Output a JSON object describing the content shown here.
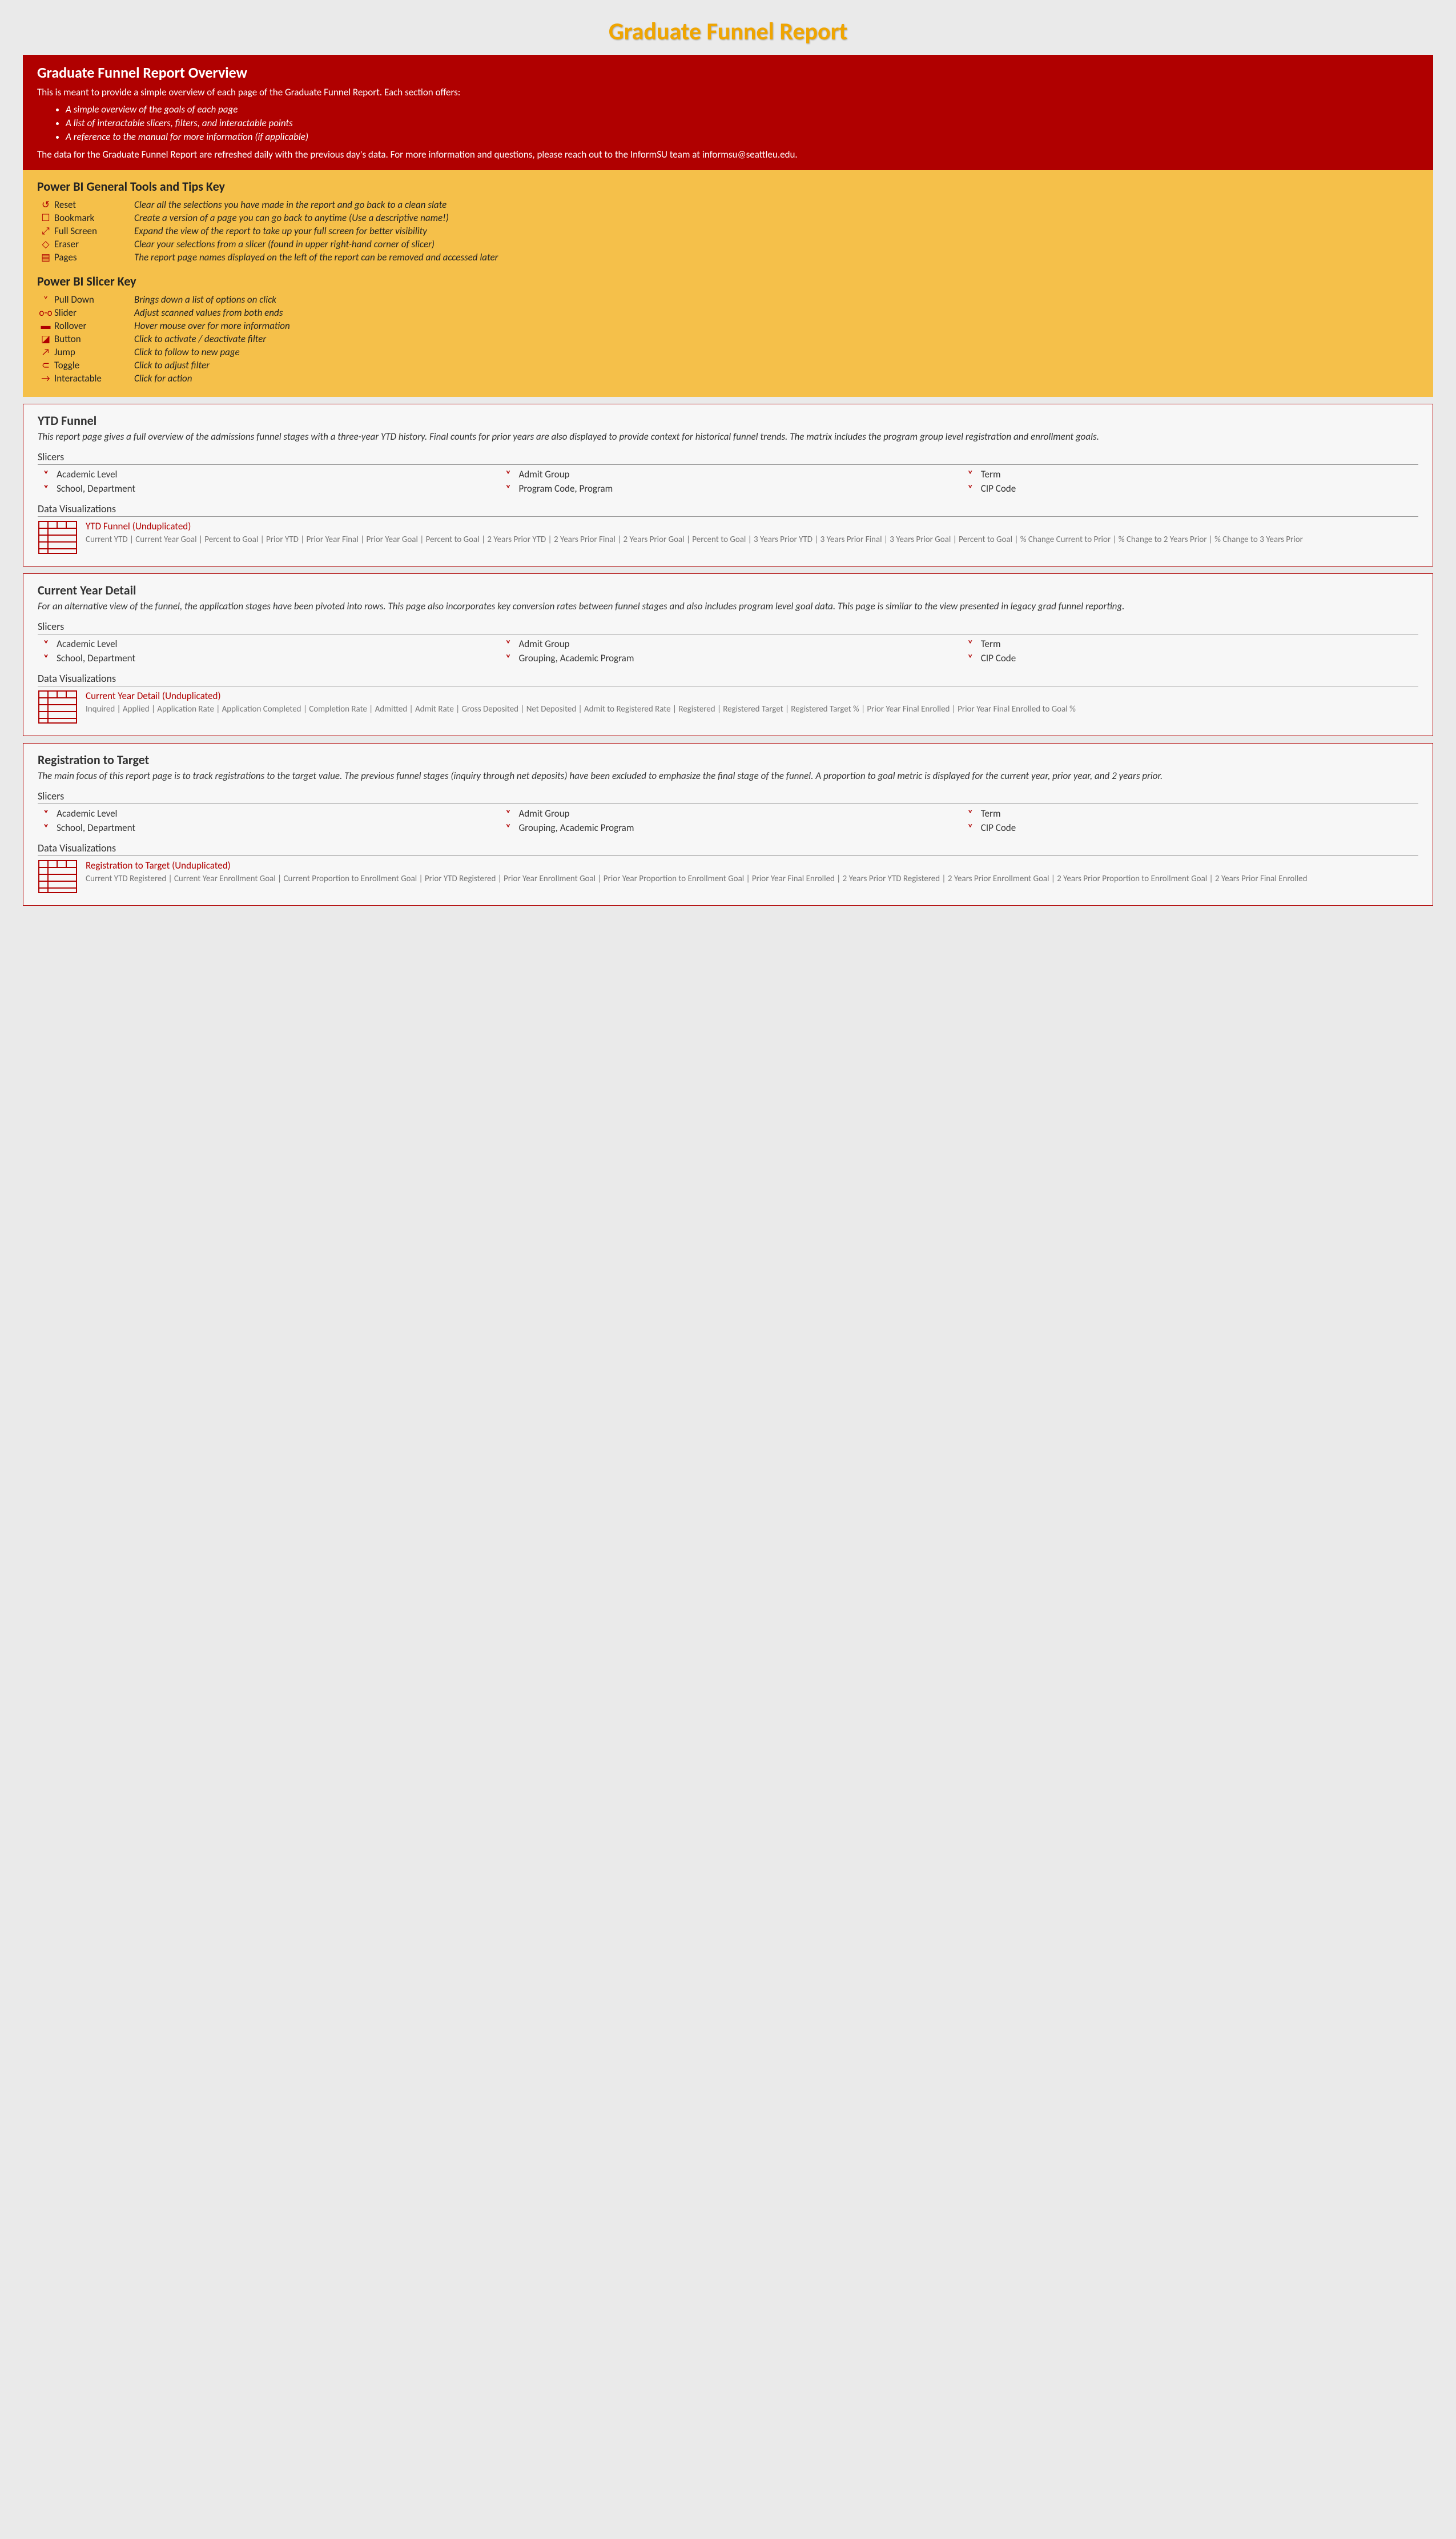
{
  "title": "Graduate Funnel Report",
  "overview": {
    "heading": "Graduate Funnel Report Overview",
    "intro": "This is meant to provide a simple overview of each page of the Graduate Funnel Report.  Each section offers:",
    "bullets": [
      "A simple overview of the goals of each page",
      "A list of interactable slicers, filters, and interactable points",
      "A reference to the manual for more information (if applicable)"
    ],
    "footer": "The data for the Graduate Funnel Report are refreshed daily with the previous day's data.  For more information and questions, please reach out to the InformSU team at informsu@seattleu.edu."
  },
  "tools": {
    "heading": "Power BI General Tools and Tips Key",
    "items": [
      {
        "icon": "↺",
        "label": "Reset",
        "desc": "Clear all the selections you have made in the report and go back to a clean slate"
      },
      {
        "icon": "☐",
        "label": "Bookmark",
        "desc": "Create a version of a page you can go back to anytime (Use a descriptive name!)"
      },
      {
        "icon": "⤢",
        "label": "Full Screen",
        "desc": "Expand the view of the report to take up your full screen for better visibility"
      },
      {
        "icon": "◇",
        "label": "Eraser",
        "desc": "Clear your selections from a slicer (found in upper right-hand corner of slicer)"
      },
      {
        "icon": "▤",
        "label": "Pages",
        "desc": "The report page names displayed on the left of the report can be removed and accessed later"
      }
    ]
  },
  "slicerKey": {
    "heading": "Power BI Slicer Key",
    "items": [
      {
        "icon": "˅",
        "label": "Pull Down",
        "desc": "Brings down a list of options on click"
      },
      {
        "icon": "o-o",
        "label": "Slider",
        "desc": "Adjust scanned values from both ends"
      },
      {
        "icon": "▬",
        "label": "Rollover",
        "desc": "Hover mouse over for more information"
      },
      {
        "icon": "◪",
        "label": "Button",
        "desc": "Click to activate / deactivate filter"
      },
      {
        "icon": "↗",
        "label": "Jump",
        "desc": "Click to follow to new page"
      },
      {
        "icon": "⊂",
        "label": "Toggle",
        "desc": "Click to adjust filter"
      },
      {
        "icon": "→",
        "label": "Interactable",
        "desc": "Click for action"
      }
    ]
  },
  "sections": [
    {
      "title": "YTD Funnel",
      "desc": "This report page gives a full overview of the admissions funnel stages with a three-year YTD history. Final counts for prior years are also displayed to provide context for historical funnel trends. The matrix includes the program group level registration and enrollment goals.",
      "slicersHead": "Slicers",
      "slicers": [
        "Academic Level",
        "Admit Group",
        "Term",
        "School, Department",
        "Program Code, Program",
        "CIP Code"
      ],
      "vizHead": "Data Visualizations",
      "vizTitle": "YTD Funnel (Unduplicated)",
      "vizFields": "Current YTD | Current Year Goal | Percent to Goal | Prior YTD | Prior Year Final | Prior Year Goal | Percent to Goal | 2 Years Prior YTD | 2 Years Prior Final | 2 Years Prior Goal | Percent to Goal | 3 Years Prior YTD | 3 Years Prior Final | 3 Years Prior Goal | Percent to Goal | % Change Current to Prior | % Change to 2 Years Prior | % Change to 3 Years Prior"
    },
    {
      "title": "Current Year Detail",
      "desc": "For an alternative view of the funnel, the application stages have been pivoted into rows. This page also incorporates key conversion rates between funnel stages and also includes program level goal data. This page is similar to the view presented in legacy grad funnel reporting.",
      "slicersHead": "Slicers",
      "slicers": [
        "Academic Level",
        "Admit Group",
        "Term",
        "School, Department",
        "Grouping, Academic Program",
        "CIP Code"
      ],
      "vizHead": "Data Visualizations",
      "vizTitle": "Current Year Detail (Unduplicated)",
      "vizFields": "Inquired | Applied | Application Rate | Application Completed | Completion Rate | Admitted | Admit Rate | Gross Deposited | Net Deposited | Admit to Registered Rate | Registered | Registered Target | Registered Target % | Prior Year Final Enrolled | Prior Year Final Enrolled to Goal %"
    },
    {
      "title": "Registration to Target",
      "desc": "The main focus of this report page is to track registrations to the target value. The previous funnel stages (inquiry through net deposits) have been excluded to emphasize the final stage of the funnel. A proportion to goal metric is displayed for the current year, prior year, and 2 years prior.",
      "slicersHead": "Slicers",
      "slicers": [
        "Academic Level",
        "Admit Group",
        "Term",
        "School, Department",
        "Grouping, Academic Program",
        "CIP Code"
      ],
      "vizHead": "Data Visualizations",
      "vizTitle": "Registration to Target (Unduplicated)",
      "vizFields": "Current YTD Registered | Current Year Enrollment Goal | Current Proportion to Enrollment Goal | Prior YTD Registered | Prior Year Enrollment Goal | Prior Year Proportion to Enrollment Goal | Prior Year Final Enrolled | 2 Years Prior YTD Registered | 2 Years Prior Enrollment Goal | 2 Years Prior Proportion to Enrollment Goal | 2 Years Prior Final Enrolled"
    }
  ]
}
